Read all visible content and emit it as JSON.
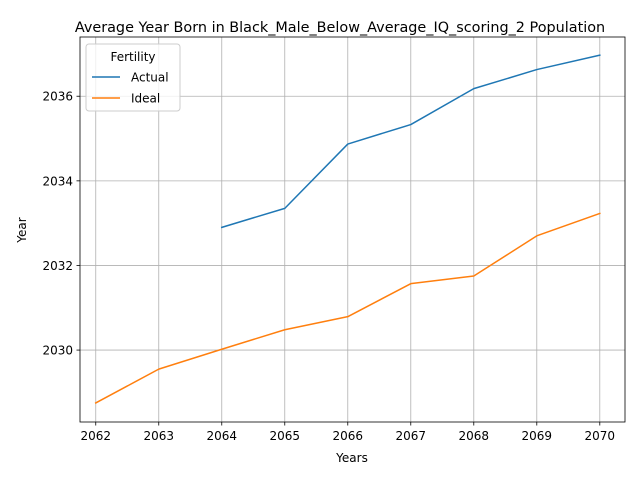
{
  "chart_data": {
    "type": "line",
    "title": "Average Year Born in Black_Male_Below_Average_IQ_scoring_2 Population",
    "xlabel": "Years",
    "ylabel": "Year",
    "xlim": [
      2061.75,
      2070.4
    ],
    "ylim": [
      2028.3,
      2037.4
    ],
    "x_ticks": [
      2062,
      2063,
      2064,
      2065,
      2066,
      2067,
      2068,
      2069,
      2070
    ],
    "y_ticks": [
      2030,
      2032,
      2034,
      2036
    ],
    "grid": true,
    "legend": {
      "title": "Fertility",
      "placement": "top-left"
    },
    "series": [
      {
        "name": "Actual",
        "color": "#1f77b4",
        "x": [
          2064,
          2065,
          2066,
          2067,
          2068,
          2069,
          2070
        ],
        "y": [
          2032.9,
          2033.35,
          2034.87,
          2035.33,
          2036.18,
          2036.63,
          2036.97
        ]
      },
      {
        "name": "Ideal",
        "color": "#ff7f0e",
        "x": [
          2062,
          2063,
          2064,
          2065,
          2066,
          2067,
          2068,
          2069,
          2070
        ],
        "y": [
          2028.75,
          2029.55,
          2030.02,
          2030.48,
          2030.79,
          2031.57,
          2031.75,
          2032.7,
          2033.23
        ]
      }
    ]
  }
}
